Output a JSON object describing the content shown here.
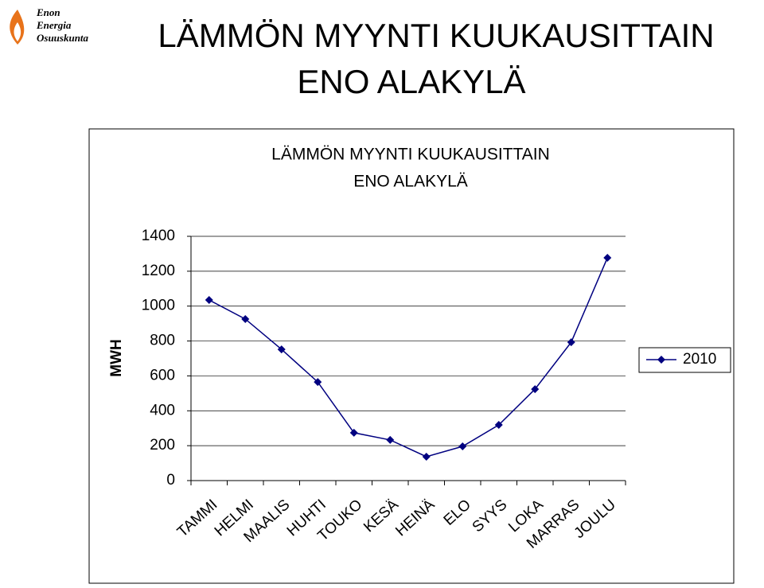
{
  "logo": [
    "Enon",
    "Energia",
    "Osuuskunta"
  ],
  "slide_title": [
    "LÄMMÖN MYYNTI KUUKAUSITTAIN",
    "ENO ALAKYLÄ"
  ],
  "chart_data": {
    "type": "line",
    "title": [
      "LÄMMÖN MYYNTI KUUKAUSITTAIN",
      "ENO ALAKYLÄ"
    ],
    "y_label": "MWH",
    "categories": [
      "TAMMI",
      "HELMI",
      "MAALIS",
      "HUHTI",
      "TOUKO",
      "KESÄ",
      "HEINÄ",
      "ELO",
      "SYYS",
      "LOKA",
      "MARRAS",
      "JOULU"
    ],
    "series": [
      {
        "name": "2010",
        "color": "#000080",
        "values": [
          1035,
          926,
          752,
          565,
          274,
          233,
          137,
          196,
          319,
          524,
          793,
          1277
        ]
      }
    ],
    "ylim": [
      0,
      1400
    ],
    "yticks": [
      0,
      200,
      400,
      600,
      800,
      1000,
      1200,
      1400
    ],
    "grid": true,
    "legend": "right"
  }
}
